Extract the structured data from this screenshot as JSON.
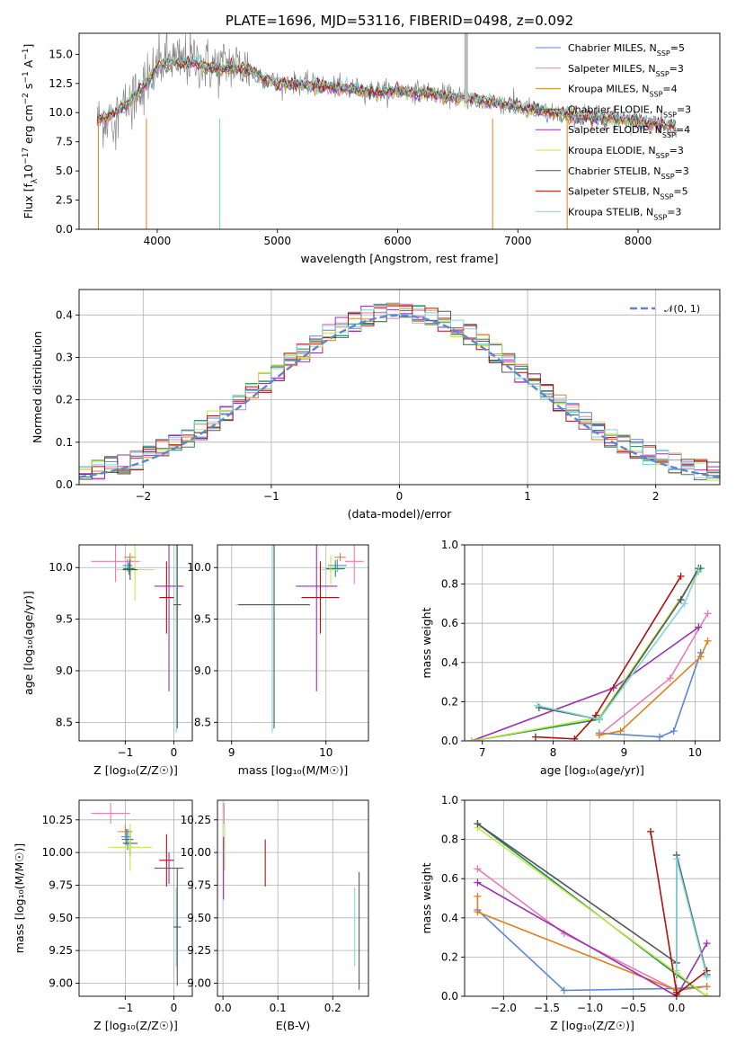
{
  "colors": {
    "chabrier_miles": "#5b86d6",
    "salpeter_miles": "#e87db6",
    "kroupa_miles": "#e08020",
    "chabrier_elodie": "#1f8a5a",
    "salpeter_elodie": "#9b30b5",
    "kroupa_elodie": "#c2e84a",
    "chabrier_stelib": "#555555",
    "salpeter_stelib": "#b01010",
    "kroupa_stelib": "#7dd6d8",
    "gaussian": "#5b86d6",
    "grid": "#b0b0b0"
  },
  "chart_data": [
    {
      "id": "spectrum",
      "type": "line",
      "title": "PLATE=1696, MJD=53116, FIBERID=0498, z=0.092",
      "xlabel": "wavelength [Angstrom, rest frame]",
      "ylabel": "Flux [f",
      "ylabel_parts": [
        "Flux [f",
        "λ",
        "10",
        "−17",
        " erg cm",
        "−2",
        " s",
        "−1",
        " A",
        "−1",
        "]"
      ],
      "xlim": [
        3350,
        8680
      ],
      "ylim": [
        0,
        16.8
      ],
      "xticks": [
        4000,
        5000,
        6000,
        7000,
        8000
      ],
      "yticks": [
        0.0,
        2.5,
        5.0,
        7.5,
        10.0,
        12.5,
        15.0
      ],
      "ytick_labels": [
        "0.0",
        "2.5",
        "5.0",
        "7.5",
        "10.0",
        "12.5",
        "15.0"
      ],
      "legend_position": "upper-right",
      "data_series": {
        "name": "",
        "color": "#888888",
        "x": [
          3510,
          3600,
          3700,
          3800,
          3900,
          4000,
          4100,
          4200,
          4300,
          4400,
          4500,
          4600,
          4700,
          4800,
          4900,
          5000,
          5200,
          5400,
          5600,
          5800,
          6000,
          6200,
          6400,
          6600,
          6800,
          7000,
          7200,
          7400,
          7600,
          7800,
          8000,
          8200,
          8300
        ],
        "y": [
          9.3,
          9.6,
          10.2,
          11.4,
          12.6,
          14.1,
          14.6,
          14.3,
          14.6,
          14.1,
          13.9,
          14.2,
          14.0,
          13.6,
          12.9,
          12.6,
          12.5,
          12.3,
          12.1,
          11.9,
          11.9,
          11.8,
          11.5,
          11.2,
          10.9,
          10.6,
          10.1,
          9.8,
          9.6,
          9.5,
          9.3,
          9.0,
          8.8
        ]
      },
      "series": [
        {
          "name": "Chabrier MILES, N",
          "sub": "SSP",
          "suffix": "=5",
          "color": "#5b86d6"
        },
        {
          "name": "Salpeter MILES, N",
          "sub": "SSP",
          "suffix": "=3",
          "color": "#e87db6"
        },
        {
          "name": "Kroupa MILES, N",
          "sub": "SSP",
          "suffix": "=4",
          "color": "#e08020"
        },
        {
          "name": "Chabrier ELODIE, N",
          "sub": "SSP",
          "suffix": "=3",
          "color": "#1f8a5a"
        },
        {
          "name": "Salpeter ELODIE, N",
          "sub": "SSP",
          "suffix": "=4",
          "color": "#9b30b5"
        },
        {
          "name": "Kroupa ELODIE, N",
          "sub": "SSP",
          "suffix": "=3",
          "color": "#c2e84a"
        },
        {
          "name": "Chabrier STELIB, N",
          "sub": "SSP",
          "suffix": "=3",
          "color": "#555555"
        },
        {
          "name": "Salpeter STELIB, N",
          "sub": "SSP",
          "suffix": "=5",
          "color": "#b01010"
        },
        {
          "name": "Kroupa STELIB, N",
          "sub": "SSP",
          "suffix": "=3",
          "color": "#7dd6d8"
        }
      ],
      "model_curve": {
        "x": [
          3510,
          3600,
          3700,
          3800,
          3900,
          4000,
          4100,
          4200,
          4300,
          4400,
          4500,
          4600,
          4700,
          4800,
          4900,
          5000,
          5200,
          5400,
          5600,
          5800,
          6000,
          6200,
          6400,
          6600,
          6800,
          7000,
          7200,
          7400,
          7600,
          7800,
          8000,
          8200,
          8300
        ],
        "y": [
          9.4,
          9.7,
          10.3,
          11.3,
          12.4,
          13.9,
          14.3,
          14.1,
          14.3,
          13.9,
          13.7,
          13.9,
          13.8,
          13.4,
          12.8,
          12.5,
          12.4,
          12.2,
          12.0,
          11.8,
          11.8,
          11.7,
          11.4,
          11.2,
          10.9,
          10.5,
          10.1,
          9.8,
          9.6,
          9.5,
          9.2,
          8.9,
          8.8
        ]
      }
    },
    {
      "id": "residuals",
      "type": "histogram",
      "xlabel": "(data-model)/error",
      "ylabel": "Normed distribution",
      "xlim": [
        -2.5,
        2.5
      ],
      "ylim": [
        0,
        0.46
      ],
      "xticks": [
        -2,
        -1,
        0,
        1,
        2
      ],
      "xtick_labels": [
        "−2",
        "−1",
        "0",
        "1",
        "2"
      ],
      "yticks": [
        0.0,
        0.1,
        0.2,
        0.3,
        0.4
      ],
      "ytick_labels": [
        "0.0",
        "0.1",
        "0.2",
        "0.3",
        "0.4"
      ],
      "legend": "𝒩(0, 1)",
      "legend_position": "upper-right",
      "bin_width": 0.1
    },
    {
      "id": "age_vs_Z",
      "type": "scatter",
      "xlabel": "Z [log₁₀(Z/Z☉)]",
      "ylabel": "age  [log₁₀(age/yr)]",
      "xlim": [
        -1.95,
        0.38
      ],
      "ylim": [
        8.32,
        10.22
      ],
      "xticks": [
        -1,
        0
      ],
      "xtick_labels": [
        "−1",
        "0"
      ],
      "yticks": [
        8.5,
        9.0,
        9.5,
        10.0
      ],
      "ytick_labels": [
        "8.5",
        "9.0",
        "9.5",
        "10.0"
      ],
      "points": [
        {
          "s": "salpeter_miles",
          "x": -1.2,
          "y": 10.06,
          "xerr": 0.5,
          "yerr": 0.2
        },
        {
          "s": "kroupa_miles",
          "x": -0.9,
          "y": 10.1,
          "xerr": 0.12,
          "yerr": 0.04
        },
        {
          "s": "chabrier_miles",
          "x": -0.95,
          "y": 10.02,
          "xerr": 0.1,
          "yerr": 0.06
        },
        {
          "s": "chabrier_elodie",
          "x": -0.92,
          "y": 9.99,
          "xerr": 0.12,
          "yerr": 0.06
        },
        {
          "s": "kroupa_elodie",
          "x": -0.8,
          "y": 9.98,
          "xerr": 0.4,
          "yerr": 0.3
        },
        {
          "s": "chabrier_stelib",
          "x": -0.9,
          "y": 9.98,
          "xerr": 0.15,
          "yerr": 0.1
        },
        {
          "s": "salpeter_elodie",
          "x": -0.1,
          "y": 9.82,
          "xerr": 0.3,
          "yerr": 1.02
        },
        {
          "s": "salpeter_stelib",
          "x": -0.15,
          "y": 9.71,
          "xerr": 0.15,
          "yerr": 0.35
        },
        {
          "s": "kroupa_stelib",
          "x": 0.05,
          "y": 9.64,
          "xerr": 0.04,
          "yerr": 1.24
        },
        {
          "s": "chabrier_stelib",
          "x": 0.07,
          "y": 9.64,
          "xerr": 0.08,
          "yerr": 1.2
        }
      ]
    },
    {
      "id": "age_vs_mass",
      "type": "scatter",
      "xlabel": "mass [log₁₀(M/M☉)]",
      "ylabel": "",
      "xlim": [
        8.85,
        10.45
      ],
      "ylim": [
        8.32,
        10.22
      ],
      "xticks": [
        9,
        10
      ],
      "xtick_labels": [
        "9",
        "10"
      ],
      "yticks": [
        8.5,
        9.0,
        9.5,
        10.0
      ],
      "ytick_labels": [
        "8.5",
        "9.0",
        "9.5",
        "10.0"
      ],
      "points": [
        {
          "s": "salpeter_miles",
          "x": 10.3,
          "y": 10.06,
          "xerr": 0.1,
          "yerr": 0.22
        },
        {
          "s": "kroupa_miles",
          "x": 10.15,
          "y": 10.1,
          "xerr": 0.06,
          "yerr": 0.04
        },
        {
          "s": "chabrier_miles",
          "x": 10.12,
          "y": 10.02,
          "xerr": 0.1,
          "yerr": 0.06
        },
        {
          "s": "chabrier_elodie",
          "x": 10.1,
          "y": 9.99,
          "xerr": 0.1,
          "yerr": 0.08
        },
        {
          "s": "kroupa_elodie",
          "x": 10.05,
          "y": 9.98,
          "xerr": 0.1,
          "yerr": 0.14
        },
        {
          "s": "salpeter_elodie",
          "x": 9.9,
          "y": 9.82,
          "xerr": 0.22,
          "yerr": 1.02
        },
        {
          "s": "salpeter_stelib",
          "x": 9.94,
          "y": 9.71,
          "xerr": 0.2,
          "yerr": 0.35
        },
        {
          "s": "kroupa_stelib",
          "x": 9.43,
          "y": 9.64,
          "xerr": 0.38,
          "yerr": 1.24
        },
        {
          "s": "chabrier_stelib",
          "x": 9.45,
          "y": 9.64,
          "xerr": 0.38,
          "yerr": 1.2
        }
      ]
    },
    {
      "id": "weight_vs_age",
      "type": "line",
      "xlabel": "age  [log₁₀(age/yr)]",
      "ylabel": "mass weight",
      "xlim": [
        6.75,
        10.35
      ],
      "ylim": [
        0,
        1.0
      ],
      "xticks": [
        7,
        8,
        9,
        10
      ],
      "xtick_labels": [
        "7",
        "8",
        "9",
        "10"
      ],
      "yticks": [
        0.0,
        0.2,
        0.4,
        0.6,
        0.8,
        1.0
      ],
      "ytick_labels": [
        "0.0",
        "0.2",
        "0.4",
        "0.6",
        "0.8",
        "1.0"
      ],
      "series": [
        {
          "s": "chabrier_miles",
          "x": [
            8.65,
            9.5,
            9.7,
            10.08
          ],
          "y": [
            0.04,
            0.02,
            0.05,
            0.45
          ]
        },
        {
          "s": "salpeter_miles",
          "x": [
            8.65,
            9.65,
            10.18
          ],
          "y": [
            0.03,
            0.32,
            0.65
          ]
        },
        {
          "s": "kroupa_miles",
          "x": [
            8.65,
            8.95,
            10.08,
            10.18
          ],
          "y": [
            0.03,
            0.05,
            0.43,
            0.51
          ]
        },
        {
          "s": "chabrier_elodie",
          "x": [
            6.85,
            8.65,
            10.08
          ],
          "y": [
            0.0,
            0.11,
            0.88
          ]
        },
        {
          "s": "salpeter_elodie",
          "x": [
            6.85,
            8.85,
            10.05
          ],
          "y": [
            0.0,
            0.27,
            0.58
          ]
        },
        {
          "s": "kroupa_elodie",
          "x": [
            6.85,
            8.65,
            10.05
          ],
          "y": [
            0.0,
            0.12,
            0.86
          ]
        },
        {
          "s": "chabrier_stelib",
          "x": [
            7.8,
            8.65,
            9.8,
            10.05
          ],
          "y": [
            0.17,
            0.11,
            0.72,
            0.88
          ]
        },
        {
          "s": "salpeter_stelib",
          "x": [
            7.75,
            8.3,
            8.6,
            9.8
          ],
          "y": [
            0.02,
            0.01,
            0.13,
            0.84
          ]
        },
        {
          "s": "kroupa_stelib",
          "x": [
            7.78,
            8.65,
            9.85,
            10.05
          ],
          "y": [
            0.18,
            0.11,
            0.7,
            0.87
          ]
        }
      ]
    },
    {
      "id": "mass_vs_Z",
      "type": "scatter",
      "xlabel": "Z [log₁₀(Z/Z☉)]",
      "ylabel": "mass [log₁₀(M/M☉)]",
      "xlim": [
        -1.95,
        0.38
      ],
      "ylim": [
        8.9,
        10.4
      ],
      "xticks": [
        -1,
        0
      ],
      "xtick_labels": [
        "−1",
        "0"
      ],
      "yticks": [
        9.0,
        9.25,
        9.5,
        9.75,
        10.0,
        10.25
      ],
      "ytick_labels": [
        "9.00",
        "9.25",
        "9.50",
        "9.75",
        "10.00",
        "10.25"
      ],
      "points": [
        {
          "s": "salpeter_miles",
          "x": -1.3,
          "y": 10.3,
          "xerr": 0.4,
          "yerr": 0.08
        },
        {
          "s": "kroupa_miles",
          "x": -1.0,
          "y": 10.16,
          "xerr": 0.15,
          "yerr": 0.05
        },
        {
          "s": "chabrier_miles",
          "x": -0.98,
          "y": 10.12,
          "xerr": 0.1,
          "yerr": 0.06
        },
        {
          "s": "chabrier_elodie",
          "x": -0.95,
          "y": 10.1,
          "xerr": 0.12,
          "yerr": 0.08
        },
        {
          "s": "chabrier_stelib",
          "x": -0.9,
          "y": 10.07,
          "xerr": 0.15,
          "yerr": 0.1
        },
        {
          "s": "kroupa_elodie",
          "x": -0.9,
          "y": 10.04,
          "xerr": 0.45,
          "yerr": 0.18
        },
        {
          "s": "salpeter_stelib",
          "x": -0.15,
          "y": 9.94,
          "xerr": 0.15,
          "yerr": 0.2
        },
        {
          "s": "salpeter_elodie",
          "x": -0.1,
          "y": 9.88,
          "xerr": 0.3,
          "yerr": 0.12
        },
        {
          "s": "kroupa_stelib",
          "x": 0.05,
          "y": 9.43,
          "xerr": 0.05,
          "yerr": 0.3
        },
        {
          "s": "chabrier_stelib",
          "x": 0.07,
          "y": 9.43,
          "xerr": 0.08,
          "yerr": 0.45
        }
      ]
    },
    {
      "id": "mass_vs_ebv",
      "type": "scatter",
      "xlabel": "E(B-V)",
      "ylabel": "",
      "xlim": [
        -0.01,
        0.265
      ],
      "ylim": [
        8.9,
        10.4
      ],
      "xticks": [
        0.0,
        0.1,
        0.2
      ],
      "xtick_labels": [
        "0.0",
        "0.1",
        "0.2"
      ],
      "yticks": [
        9.0,
        9.25,
        9.5,
        9.75,
        10.0,
        10.25
      ],
      "ytick_labels": [
        "9.00",
        "9.25",
        "9.50",
        "9.75",
        "10.00",
        "10.25"
      ],
      "points": [
        {
          "s": "salpeter_miles",
          "x": 0.002,
          "y": 10.3,
          "xerr": 0.0,
          "yerr": 0.08
        },
        {
          "s": "kroupa_elodie",
          "x": 0.003,
          "y": 10.04,
          "xerr": 0.0,
          "yerr": 0.18
        },
        {
          "s": "salpeter_elodie",
          "x": 0.001,
          "y": 9.88,
          "xerr": 0.0,
          "yerr": 0.24
        },
        {
          "s": "salpeter_stelib",
          "x": 0.077,
          "y": 9.92,
          "xerr": 0.0,
          "yerr": 0.18
        },
        {
          "s": "kroupa_stelib",
          "x": 0.24,
          "y": 9.43,
          "xerr": 0.0,
          "yerr": 0.3
        },
        {
          "s": "chabrier_stelib",
          "x": 0.248,
          "y": 9.4,
          "xerr": 0.0,
          "yerr": 0.45
        }
      ]
    },
    {
      "id": "weight_vs_Z",
      "type": "line",
      "xlabel": "Z [log₁₀(Z/Z☉)]",
      "ylabel": "mass weight",
      "xlim": [
        -2.45,
        0.5
      ],
      "ylim": [
        0,
        1.0
      ],
      "xticks": [
        -2.0,
        -1.5,
        -1.0,
        -0.5,
        0.0
      ],
      "xtick_labels": [
        "−2.0",
        "−1.5",
        "−1.0",
        "−0.5",
        "0.0"
      ],
      "yticks": [
        0.0,
        0.2,
        0.4,
        0.6,
        0.8,
        1.0
      ],
      "ytick_labels": [
        "0.0",
        "0.2",
        "0.4",
        "0.6",
        "0.8",
        "1.0"
      ],
      "series": [
        {
          "s": "chabrier_miles",
          "x": [
            -2.3,
            -1.3,
            0.0,
            0.35
          ],
          "y": [
            0.44,
            0.03,
            0.04,
            0.05
          ]
        },
        {
          "s": "salpeter_miles",
          "x": [
            -2.3,
            -1.3,
            0.0
          ],
          "y": [
            0.65,
            0.32,
            0.03
          ]
        },
        {
          "s": "kroupa_miles",
          "x": [
            -2.3,
            -2.3,
            0.0,
            0.35
          ],
          "y": [
            0.51,
            0.43,
            0.03,
            0.05
          ]
        },
        {
          "s": "chabrier_elodie",
          "x": [
            -2.3,
            0.0,
            0.35
          ],
          "y": [
            0.88,
            0.11,
            0.0
          ]
        },
        {
          "s": "salpeter_elodie",
          "x": [
            -2.3,
            0.0,
            0.35
          ],
          "y": [
            0.58,
            0.0,
            0.27
          ]
        },
        {
          "s": "kroupa_elodie",
          "x": [
            -2.3,
            0.0,
            0.35
          ],
          "y": [
            0.86,
            0.12,
            0.0
          ]
        },
        {
          "s": "chabrier_stelib",
          "x": [
            -2.3,
            0.0,
            0.0,
            0.35
          ],
          "y": [
            0.88,
            0.17,
            0.72,
            0.11
          ]
        },
        {
          "s": "salpeter_stelib",
          "x": [
            -0.3,
            0.0,
            0.0,
            0.35
          ],
          "y": [
            0.84,
            0.02,
            0.01,
            0.13
          ]
        },
        {
          "s": "kroupa_stelib",
          "x": [
            0.0,
            0.0,
            0.35
          ],
          "y": [
            0.13,
            0.7,
            0.1
          ]
        }
      ]
    }
  ]
}
